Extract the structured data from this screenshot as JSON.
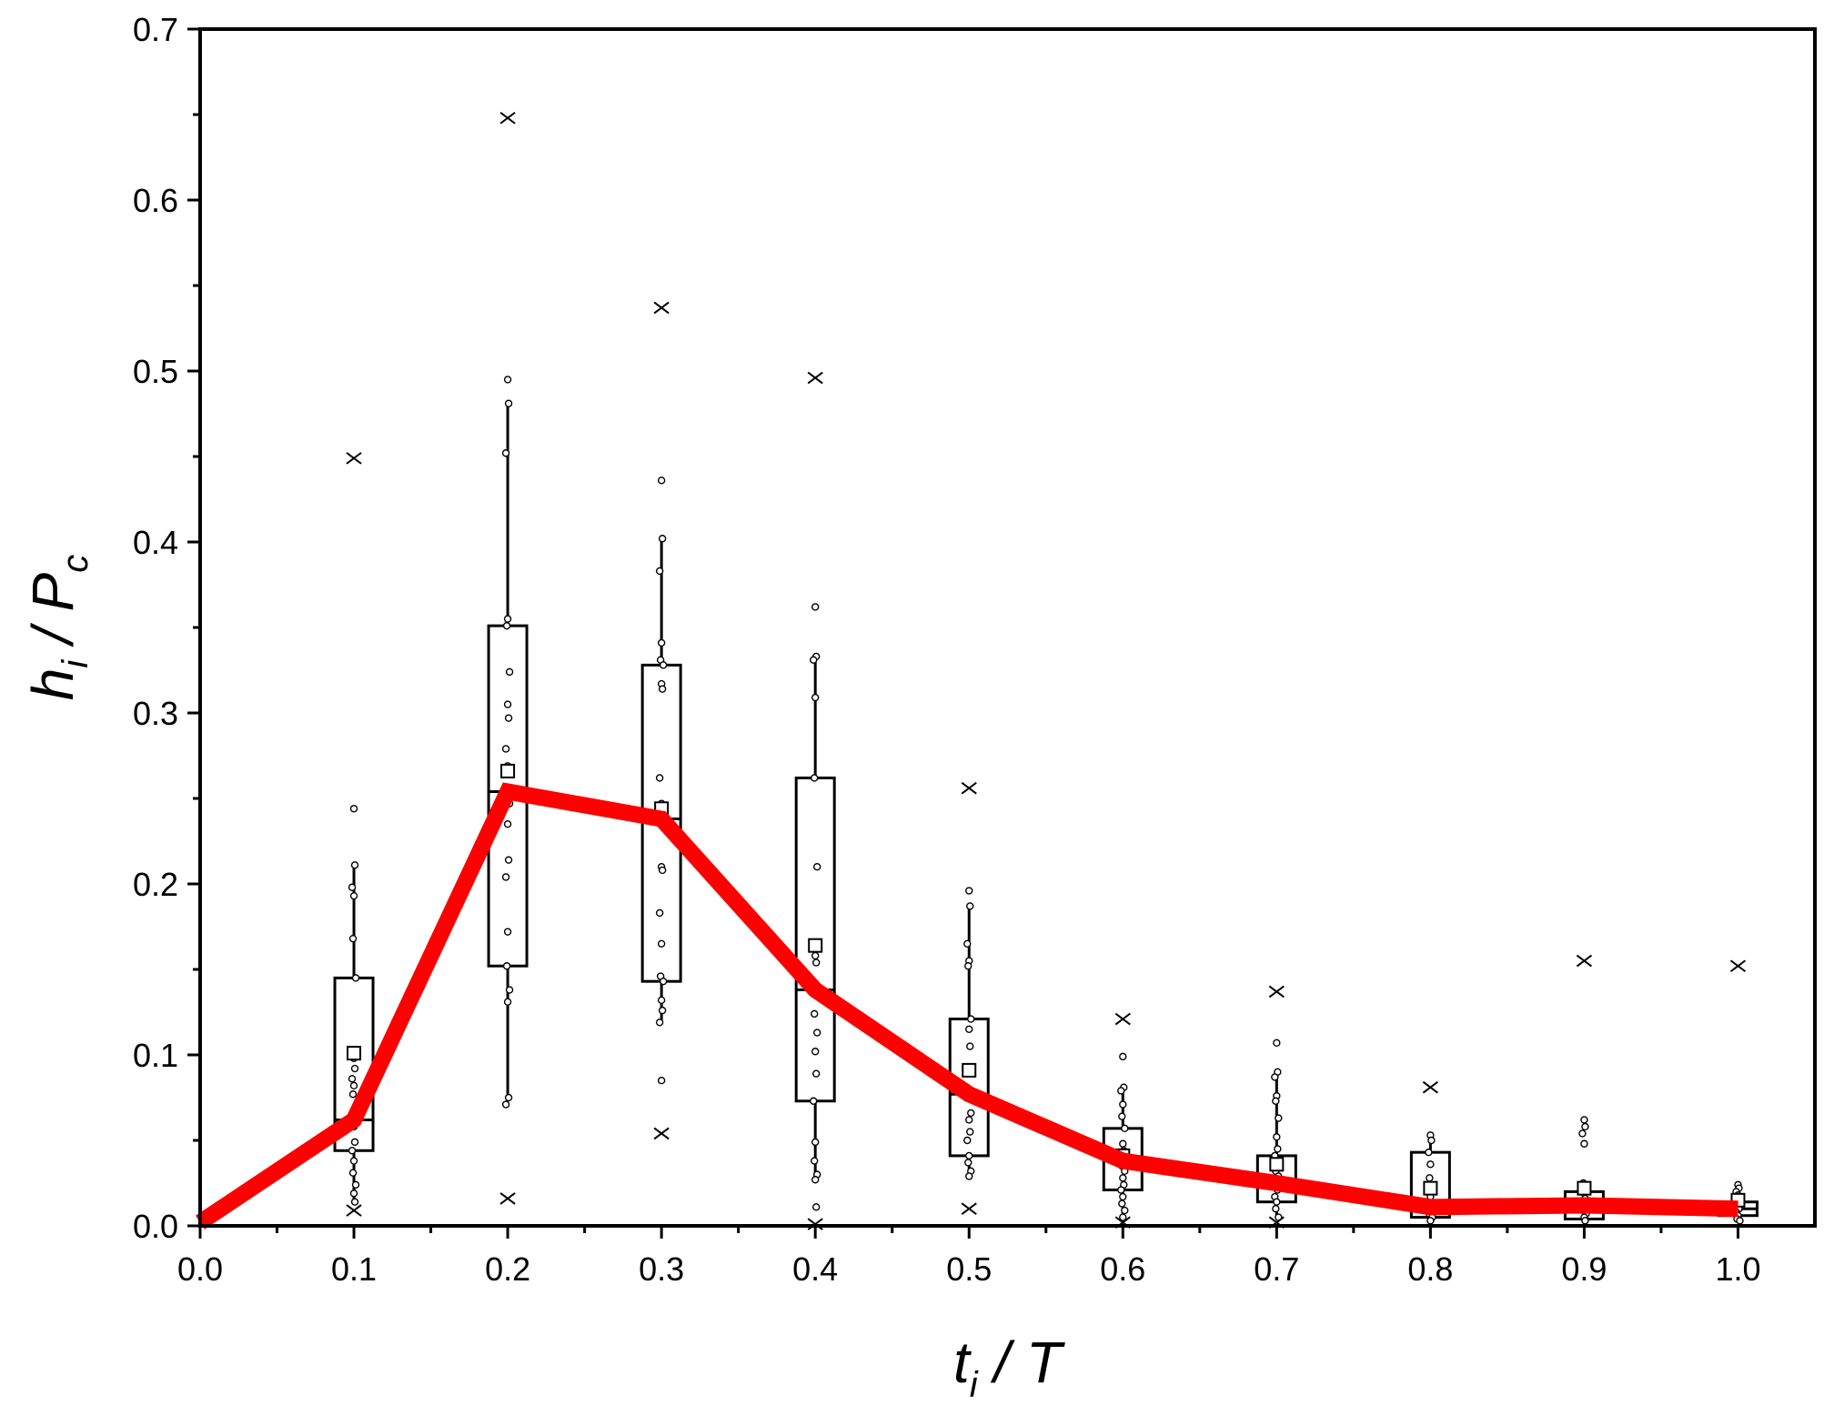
{
  "chart_data": {
    "type": "box",
    "xlabel": {
      "main": "t",
      "sub": "i",
      "rest": " / T"
    },
    "ylabel": {
      "main": "h",
      "sub": "i",
      "rest": " / P",
      "sub2": "c"
    },
    "xlim": [
      0.0,
      1.05
    ],
    "ylim": [
      0.0,
      0.7
    ],
    "x_ticks": [
      "0.0",
      "0.1",
      "0.2",
      "0.3",
      "0.4",
      "0.5",
      "0.6",
      "0.7",
      "0.8",
      "0.9",
      "1.0"
    ],
    "y_ticks": [
      "0.0",
      "0.1",
      "0.2",
      "0.3",
      "0.4",
      "0.5",
      "0.6",
      "0.7"
    ],
    "grid": false,
    "colors": {
      "line": "#ff0000",
      "box": "#000000"
    },
    "boxes": [
      {
        "x": 0.1,
        "q1": 0.044,
        "median": 0.062,
        "q3": 0.145,
        "mean": 0.101,
        "whisker_low": 0.014,
        "whisker_high": 0.211,
        "outliers": [
          0.449,
          0.009
        ],
        "points": [
          0.244,
          0.211,
          0.198,
          0.193,
          0.168,
          0.145,
          0.098,
          0.092,
          0.086,
          0.082,
          0.077,
          0.064,
          0.058,
          0.049,
          0.044,
          0.038,
          0.031,
          0.024,
          0.019,
          0.014
        ]
      },
      {
        "x": 0.2,
        "q1": 0.152,
        "median": 0.254,
        "q3": 0.351,
        "mean": 0.266,
        "whisker_low": 0.075,
        "whisker_high": 0.481,
        "outliers": [
          0.648,
          0.016
        ],
        "points": [
          0.495,
          0.481,
          0.452,
          0.355,
          0.351,
          0.324,
          0.305,
          0.297,
          0.279,
          0.269,
          0.254,
          0.247,
          0.235,
          0.214,
          0.204,
          0.172,
          0.152,
          0.138,
          0.131,
          0.075,
          0.071
        ]
      },
      {
        "x": 0.3,
        "q1": 0.143,
        "median": 0.238,
        "q3": 0.328,
        "mean": 0.244,
        "whisker_low": 0.119,
        "whisker_high": 0.402,
        "outliers": [
          0.537,
          0.054
        ],
        "points": [
          0.436,
          0.402,
          0.383,
          0.341,
          0.331,
          0.328,
          0.317,
          0.314,
          0.262,
          0.247,
          0.245,
          0.238,
          0.21,
          0.208,
          0.183,
          0.165,
          0.146,
          0.143,
          0.132,
          0.126,
          0.119,
          0.085
        ]
      },
      {
        "x": 0.4,
        "q1": 0.073,
        "median": 0.138,
        "q3": 0.262,
        "mean": 0.164,
        "whisker_low": 0.027,
        "whisker_high": 0.333,
        "outliers": [
          0.496,
          0.001
        ],
        "points": [
          0.362,
          0.333,
          0.331,
          0.309,
          0.262,
          0.21,
          0.158,
          0.154,
          0.141,
          0.138,
          0.124,
          0.113,
          0.102,
          0.089,
          0.073,
          0.049,
          0.038,
          0.03,
          0.027,
          0.011
        ]
      },
      {
        "x": 0.5,
        "q1": 0.041,
        "median": 0.077,
        "q3": 0.121,
        "mean": 0.091,
        "whisker_low": 0.029,
        "whisker_high": 0.187,
        "outliers": [
          0.256,
          0.01
        ],
        "points": [
          0.196,
          0.187,
          0.165,
          0.155,
          0.152,
          0.121,
          0.115,
          0.105,
          0.093,
          0.089,
          0.075,
          0.066,
          0.062,
          0.055,
          0.05,
          0.041,
          0.037,
          0.032,
          0.029
        ]
      },
      {
        "x": 0.6,
        "q1": 0.021,
        "median": 0.038,
        "q3": 0.057,
        "mean": 0.041,
        "whisker_low": 0.005,
        "whisker_high": 0.081,
        "outliers": [
          0.121,
          0.002
        ],
        "points": [
          0.099,
          0.081,
          0.079,
          0.071,
          0.064,
          0.057,
          0.048,
          0.044,
          0.041,
          0.038,
          0.035,
          0.032,
          0.028,
          0.024,
          0.021,
          0.017,
          0.013,
          0.009,
          0.005
        ]
      },
      {
        "x": 0.7,
        "q1": 0.014,
        "median": 0.025,
        "q3": 0.041,
        "mean": 0.036,
        "whisker_low": 0.005,
        "whisker_high": 0.09,
        "outliers": [
          0.137,
          0.002
        ],
        "points": [
          0.107,
          0.09,
          0.087,
          0.076,
          0.073,
          0.063,
          0.052,
          0.045,
          0.041,
          0.036,
          0.032,
          0.029,
          0.025,
          0.021,
          0.017,
          0.014,
          0.01,
          0.005
        ]
      },
      {
        "x": 0.8,
        "q1": 0.005,
        "median": 0.011,
        "q3": 0.043,
        "mean": 0.022,
        "whisker_low": 0.003,
        "whisker_high": 0.053,
        "outliers": [
          0.081
        ],
        "points": [
          0.053,
          0.05,
          0.043,
          0.036,
          0.028,
          0.022,
          0.017,
          0.013,
          0.011,
          0.009,
          0.007,
          0.005,
          0.003
        ]
      },
      {
        "x": 0.9,
        "q1": 0.004,
        "median": 0.012,
        "q3": 0.02,
        "mean": 0.022,
        "whisker_low": 0.003,
        "whisker_high": 0.025,
        "outliers": [
          0.155
        ],
        "points": [
          0.062,
          0.058,
          0.054,
          0.048,
          0.025,
          0.022,
          0.019,
          0.016,
          0.013,
          0.011,
          0.009,
          0.007,
          0.005,
          0.003
        ]
      },
      {
        "x": 1.0,
        "q1": 0.006,
        "median": 0.01,
        "q3": 0.014,
        "mean": 0.015,
        "whisker_low": 0.003,
        "whisker_high": 0.022,
        "outliers": [
          0.152
        ],
        "points": [
          0.024,
          0.022,
          0.02,
          0.018,
          0.016,
          0.014,
          0.012,
          0.01,
          0.008,
          0.006,
          0.004,
          0.003
        ]
      }
    ],
    "line": {
      "x": [
        0.0,
        0.1,
        0.2,
        0.3,
        0.4,
        0.5,
        0.6,
        0.7,
        0.8,
        0.9,
        1.0
      ],
      "y": [
        0.002,
        0.062,
        0.254,
        0.238,
        0.138,
        0.077,
        0.038,
        0.025,
        0.011,
        0.012,
        0.01
      ]
    }
  }
}
